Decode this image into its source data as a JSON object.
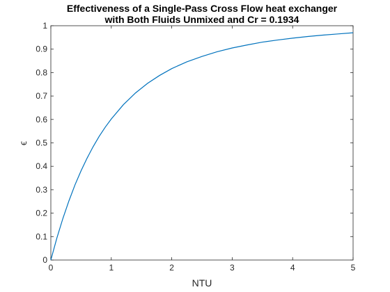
{
  "chart_data": {
    "type": "line",
    "title_lines": [
      "Effectiveness of a Single-Pass Cross Flow heat exchanger",
      "with Both Fluids Unmixed and Cr = 0.1934"
    ],
    "xlabel": "NTU",
    "ylabel": "ϵ",
    "xlim": [
      0,
      5
    ],
    "ylim": [
      0,
      1
    ],
    "xticks": [
      "0",
      "1",
      "2",
      "3",
      "4",
      "5"
    ],
    "yticks": [
      "0",
      "0.1",
      "0.2",
      "0.3",
      "0.4",
      "0.5",
      "0.6",
      "0.7",
      "0.8",
      "0.9",
      "1"
    ],
    "grid": false,
    "series": [
      {
        "color": "#0072BD",
        "x": [
          0,
          0.1,
          0.2,
          0.3,
          0.4,
          0.5,
          0.6,
          0.7,
          0.8,
          0.9,
          1.0,
          1.2,
          1.4,
          1.6,
          1.8,
          2.0,
          2.25,
          2.5,
          2.75,
          3.0,
          3.25,
          3.5,
          3.75,
          4.0,
          4.25,
          4.5,
          4.75,
          5.0
        ],
        "y": [
          0,
          0.094,
          0.178,
          0.253,
          0.321,
          0.381,
          0.435,
          0.484,
          0.528,
          0.567,
          0.602,
          0.663,
          0.713,
          0.754,
          0.788,
          0.817,
          0.846,
          0.869,
          0.889,
          0.905,
          0.918,
          0.93,
          0.939,
          0.947,
          0.954,
          0.96,
          0.965,
          0.97
        ]
      }
    ]
  }
}
